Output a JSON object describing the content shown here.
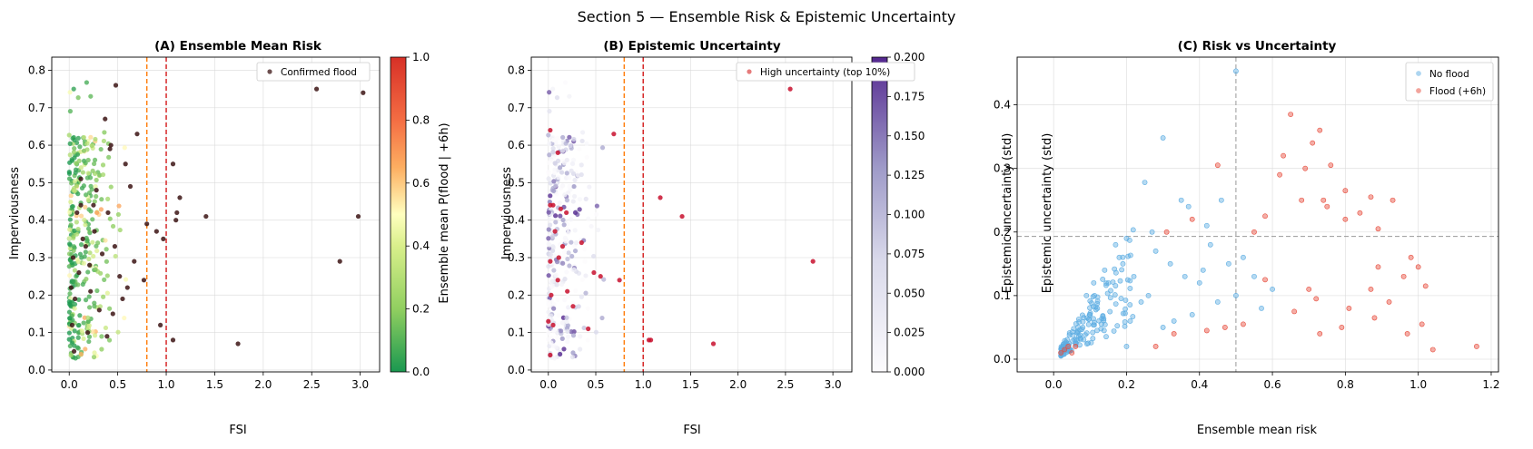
{
  "figure": {
    "suptitle": "Section 5 — Ensemble Risk & Epistemic Uncertainty"
  },
  "chart_data": [
    {
      "id": "A",
      "type": "scatter",
      "title": "(A) Ensemble Mean Risk",
      "xlabel": "FSI",
      "ylabel": "Imperviousness",
      "xlim": [
        -0.18,
        3.2
      ],
      "ylim": [
        -0.005,
        0.835
      ],
      "xticks": [
        "0.0",
        "0.5",
        "1.0",
        "1.5",
        "2.0",
        "2.5",
        "3.0"
      ],
      "yticks": [
        "0.0",
        "0.1",
        "0.2",
        "0.3",
        "0.4",
        "0.5",
        "0.6",
        "0.7",
        "0.8"
      ],
      "grid": true,
      "vlines": [
        {
          "x": 0.8,
          "color": "#ff7f0e"
        },
        {
          "x": 1.0,
          "color": "#d62728"
        }
      ],
      "colorbar": {
        "label": "Ensemble mean P(flood | +6h)",
        "cmap": "RdYlGn_r",
        "range": [
          0.0,
          1.0
        ],
        "ticks": [
          "0.0",
          "0.2",
          "0.4",
          "0.6",
          "0.8",
          "1.0"
        ]
      },
      "legend": {
        "position": "top-right",
        "entries": [
          "Confirmed flood"
        ]
      },
      "flood_points": [
        [
          0.25,
          0.44
        ],
        [
          0.37,
          0.67
        ],
        [
          0.48,
          0.76
        ],
        [
          0.43,
          0.6
        ],
        [
          0.42,
          0.59
        ],
        [
          0.7,
          0.63
        ],
        [
          1.07,
          0.55
        ],
        [
          1.14,
          0.46
        ],
        [
          1.11,
          0.42
        ],
        [
          1.1,
          0.4
        ],
        [
          1.41,
          0.41
        ],
        [
          0.8,
          0.39
        ],
        [
          0.9,
          0.37
        ],
        [
          0.97,
          0.35
        ],
        [
          0.77,
          0.24
        ],
        [
          0.94,
          0.12
        ],
        [
          1.07,
          0.08
        ],
        [
          1.74,
          0.07
        ],
        [
          2.55,
          0.75
        ],
        [
          3.03,
          0.74
        ],
        [
          2.98,
          0.41
        ],
        [
          2.79,
          0.29
        ],
        [
          0.08,
          0.42
        ],
        [
          0.12,
          0.51
        ],
        [
          0.04,
          0.3
        ],
        [
          0.22,
          0.21
        ],
        [
          0.14,
          0.35
        ],
        [
          0.28,
          0.48
        ],
        [
          0.34,
          0.31
        ],
        [
          0.47,
          0.33
        ],
        [
          0.52,
          0.25
        ],
        [
          0.55,
          0.19
        ],
        [
          0.6,
          0.22
        ],
        [
          0.31,
          0.16
        ],
        [
          0.19,
          0.1
        ],
        [
          0.03,
          0.12
        ],
        [
          0.06,
          0.19
        ],
        [
          0.4,
          0.42
        ],
        [
          0.63,
          0.49
        ],
        [
          0.1,
          0.26
        ],
        [
          0.26,
          0.37
        ],
        [
          0.45,
          0.15
        ],
        [
          0.67,
          0.29
        ],
        [
          0.02,
          0.22
        ],
        [
          0.17,
          0.33
        ],
        [
          0.39,
          0.09
        ],
        [
          0.58,
          0.55
        ],
        [
          0.12,
          0.44
        ],
        [
          0.05,
          0.05
        ],
        [
          0.21,
          0.28
        ]
      ]
    },
    {
      "id": "B",
      "type": "scatter",
      "title": "(B) Epistemic Uncertainty",
      "xlabel": "FSI",
      "ylabel": "Imperviousness",
      "xlim": [
        -0.18,
        3.2
      ],
      "ylim": [
        -0.005,
        0.835
      ],
      "xticks": [
        "0.0",
        "0.5",
        "1.0",
        "1.5",
        "2.0",
        "2.5",
        "3.0"
      ],
      "yticks": [
        "0.0",
        "0.1",
        "0.2",
        "0.3",
        "0.4",
        "0.5",
        "0.6",
        "0.7",
        "0.8"
      ],
      "grid": true,
      "vlines": [
        {
          "x": 0.8,
          "color": "#ff7f0e"
        },
        {
          "x": 1.0,
          "color": "#d62728"
        }
      ],
      "colorbar": {
        "label": "Epistemic uncertainty (std)",
        "cmap": "Purples",
        "range": [
          0.0,
          0.2
        ],
        "ticks": [
          "0.000",
          "0.025",
          "0.050",
          "0.075",
          "0.100",
          "0.125",
          "0.150",
          "0.175",
          "0.200"
        ]
      },
      "legend": {
        "position": "top-right",
        "entries": [
          "High uncertainty (top 10%)"
        ]
      },
      "high_points": [
        [
          0.02,
          0.64
        ],
        [
          0.1,
          0.58
        ],
        [
          0.02,
          0.44
        ],
        [
          0.05,
          0.44
        ],
        [
          0.13,
          0.43
        ],
        [
          0.07,
          0.37
        ],
        [
          0.02,
          0.29
        ],
        [
          0.11,
          0.3
        ],
        [
          0.1,
          0.24
        ],
        [
          0.0,
          0.13
        ],
        [
          0.05,
          0.12
        ],
        [
          0.02,
          0.04
        ],
        [
          0.19,
          0.42
        ],
        [
          0.2,
          0.21
        ],
        [
          0.35,
          0.34
        ],
        [
          0.48,
          0.26
        ],
        [
          0.55,
          0.25
        ],
        [
          0.69,
          0.63
        ],
        [
          0.75,
          0.24
        ],
        [
          1.06,
          0.08
        ],
        [
          1.08,
          0.08
        ],
        [
          1.18,
          0.46
        ],
        [
          1.41,
          0.41
        ],
        [
          1.74,
          0.07
        ],
        [
          2.55,
          0.75
        ],
        [
          2.79,
          0.29
        ],
        [
          0.26,
          0.17
        ],
        [
          0.42,
          0.11
        ],
        [
          0.03,
          0.2
        ],
        [
          0.15,
          0.33
        ]
      ]
    },
    {
      "id": "C",
      "type": "scatter",
      "title": "(C) Risk vs Uncertainty",
      "xlabel": "Ensemble mean risk",
      "ylabel": "Epistemic uncertainty (std)",
      "xlim": [
        -0.1,
        1.22
      ],
      "ylim": [
        -0.02,
        0.475
      ],
      "xticks": [
        "0.0",
        "0.2",
        "0.4",
        "0.6",
        "0.8",
        "1.0",
        "1.2"
      ],
      "yticks": [
        "0.0",
        "0.1",
        "0.2",
        "0.3",
        "0.4"
      ],
      "grid": true,
      "vline": 0.5,
      "hline": 0.193,
      "legend": {
        "position": "top-right",
        "entries": [
          "No flood",
          "Flood (+6h)"
        ]
      },
      "series": [
        {
          "name": "No flood",
          "color": "#5dade2",
          "points": [
            [
              0.5,
              0.453
            ],
            [
              0.3,
              0.348
            ],
            [
              0.25,
              0.278
            ],
            [
              0.2,
              0.19
            ],
            [
              0.18,
              0.16
            ],
            [
              0.35,
              0.25
            ],
            [
              0.37,
              0.24
            ],
            [
              0.42,
              0.21
            ],
            [
              0.46,
              0.25
            ],
            [
              0.28,
              0.17
            ],
            [
              0.32,
              0.15
            ],
            [
              0.22,
              0.13
            ],
            [
              0.15,
              0.12
            ],
            [
              0.26,
              0.1
            ],
            [
              0.4,
              0.12
            ],
            [
              0.45,
              0.09
            ],
            [
              0.52,
              0.16
            ],
            [
              0.55,
              0.13
            ],
            [
              0.6,
              0.11
            ],
            [
              0.12,
              0.08
            ],
            [
              0.1,
              0.07
            ],
            [
              0.08,
              0.05
            ],
            [
              0.2,
              0.02
            ],
            [
              0.3,
              0.05
            ],
            [
              0.36,
              0.13
            ],
            [
              0.43,
              0.18
            ],
            [
              0.48,
              0.15
            ],
            [
              0.17,
              0.18
            ],
            [
              0.14,
              0.14
            ],
            [
              0.38,
              0.07
            ],
            [
              0.33,
              0.06
            ],
            [
              0.24,
              0.09
            ],
            [
              0.09,
              0.1
            ],
            [
              0.11,
              0.12
            ],
            [
              0.19,
              0.15
            ],
            [
              0.27,
              0.2
            ],
            [
              0.41,
              0.14
            ],
            [
              0.5,
              0.1
            ],
            [
              0.57,
              0.08
            ],
            [
              0.21,
              0.06
            ]
          ]
        },
        {
          "name": "Flood (+6h)",
          "color": "#e74c3c",
          "points": [
            [
              0.65,
              0.385
            ],
            [
              0.73,
              0.36
            ],
            [
              0.71,
              0.34
            ],
            [
              0.69,
              0.3
            ],
            [
              0.63,
              0.32
            ],
            [
              0.76,
              0.305
            ],
            [
              0.8,
              0.265
            ],
            [
              0.74,
              0.25
            ],
            [
              0.68,
              0.25
            ],
            [
              0.62,
              0.29
            ],
            [
              0.87,
              0.255
            ],
            [
              0.93,
              0.25
            ],
            [
              0.84,
              0.23
            ],
            [
              0.8,
              0.22
            ],
            [
              0.75,
              0.24
            ],
            [
              0.58,
              0.225
            ],
            [
              0.45,
              0.305
            ],
            [
              0.38,
              0.22
            ],
            [
              0.31,
              0.2
            ],
            [
              0.55,
              0.2
            ],
            [
              0.89,
              0.205
            ],
            [
              0.98,
              0.16
            ],
            [
              0.96,
              0.13
            ],
            [
              0.89,
              0.145
            ],
            [
              0.87,
              0.11
            ],
            [
              0.81,
              0.08
            ],
            [
              0.92,
              0.09
            ],
            [
              1.0,
              0.145
            ],
            [
              1.02,
              0.115
            ],
            [
              0.7,
              0.11
            ],
            [
              0.66,
              0.075
            ],
            [
              0.58,
              0.125
            ],
            [
              0.72,
              0.095
            ],
            [
              0.88,
              0.065
            ],
            [
              1.01,
              0.055
            ],
            [
              0.97,
              0.04
            ],
            [
              1.04,
              0.015
            ],
            [
              1.16,
              0.02
            ],
            [
              0.79,
              0.05
            ],
            [
              0.73,
              0.04
            ],
            [
              0.52,
              0.055
            ],
            [
              0.47,
              0.05
            ],
            [
              0.42,
              0.045
            ],
            [
              0.33,
              0.04
            ],
            [
              0.28,
              0.02
            ],
            [
              0.05,
              0.01
            ],
            [
              0.04,
              0.02
            ],
            [
              0.03,
              0.015
            ],
            [
              0.06,
              0.02
            ],
            [
              0.02,
              0.01
            ]
          ]
        }
      ]
    }
  ]
}
